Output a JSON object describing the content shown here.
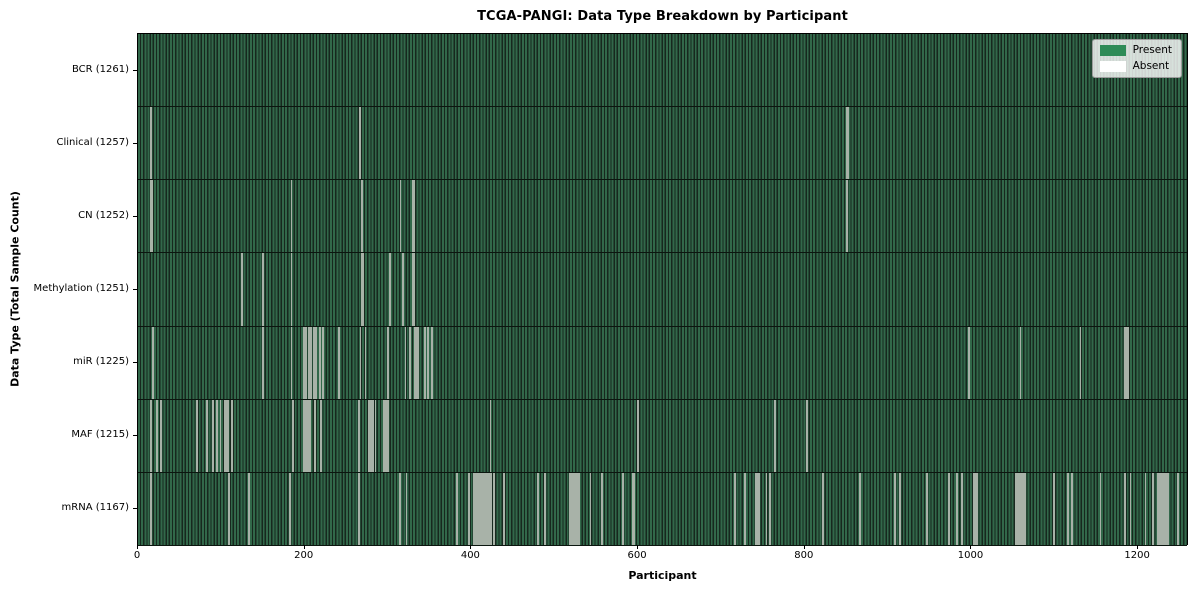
{
  "title": "TCGA-PANGI: Data Type Breakdown by Participant",
  "colors": {
    "present": "#2e8b57",
    "absent": "#ffffff",
    "absent_gap_line": "#a8b2a8",
    "bar_stripe_dark": "#17281e",
    "bar_stripe_green": "#32684a",
    "legend_bg": "#f2f2f2",
    "legend_border": "#9c9c9c"
  },
  "chart_data": {
    "type": "heatmap",
    "title": "TCGA-PANGI: Data Type Breakdown by Participant",
    "x_axis": {
      "label": "Participant",
      "ticks": [
        0,
        200,
        400,
        600,
        800,
        1000,
        1200
      ],
      "range": [
        0,
        1261
      ]
    },
    "y_axis": {
      "label": "Data Type (Total Sample Count)"
    },
    "legend": [
      {
        "label": "Present",
        "color": "#2e8b57"
      },
      {
        "label": "Absent",
        "color": "#ffffff"
      }
    ],
    "legend_position": "upper right",
    "grid": false,
    "total_participants": 1261,
    "rows": [
      {
        "name": "BCR",
        "label": "BCR (1261)",
        "count": 1261,
        "absent": []
      },
      {
        "name": "Clinical",
        "label": "Clinical (1257)",
        "count": 1257,
        "absent": [
          16,
          266,
          851,
          852
        ]
      },
      {
        "name": "CN",
        "label": "CN (1252)",
        "count": 1252,
        "absent": [
          16,
          17,
          184,
          268,
          269,
          315,
          330,
          331,
          851
        ]
      },
      {
        "name": "Methylation",
        "label": "Methylation (1251)",
        "count": 1251,
        "absent": [
          125,
          150,
          184,
          269,
          270,
          302,
          303,
          318,
          330,
          331
        ]
      },
      {
        "name": "miR",
        "label": "miR (1225)",
        "count": 1225,
        "absent": [
          18,
          150,
          184,
          199,
          200,
          202,
          205,
          206,
          208,
          211,
          212,
          214,
          218,
          219,
          222,
          241,
          267,
          273,
          300,
          321,
          326,
          332,
          333,
          334,
          335,
          336,
          344,
          348,
          353,
          997,
          1059,
          1131,
          1184,
          1185,
          1186,
          1188
        ]
      },
      {
        "name": "MAF",
        "label": "MAF (1215)",
        "count": 1215,
        "absent": [
          16,
          23,
          28,
          71,
          83,
          90,
          95,
          99,
          104,
          105,
          106,
          107,
          108,
          113,
          186,
          199,
          200,
          201,
          202,
          203,
          204,
          205,
          206,
          207,
          212,
          213,
          219,
          220,
          265,
          277,
          278,
          279,
          280,
          281,
          282,
          285,
          295,
          296,
          297,
          298,
          299,
          300,
          423,
          600,
          764,
          803
        ]
      },
      {
        "name": "mRNA",
        "label": "mRNA (1167)",
        "count": 1167,
        "absent": [
          16,
          109,
          133,
          182,
          265,
          314,
          322,
          383,
          397,
          403,
          404,
          406,
          407,
          409,
          410,
          412,
          413,
          415,
          416,
          418,
          419,
          421,
          422,
          424,
          427,
          439,
          480,
          488,
          518,
          519,
          520,
          521,
          522,
          523,
          524,
          525,
          526,
          527,
          528,
          529,
          543,
          557,
          582,
          594,
          595,
          716,
          728,
          741,
          742,
          743,
          744,
          745,
          754,
          758,
          822,
          866,
          908,
          914,
          947,
          973,
          983,
          989,
          1003,
          1004,
          1005,
          1006,
          1007,
          1053,
          1054,
          1056,
          1057,
          1059,
          1060,
          1062,
          1063,
          1065,
          1099,
          1116,
          1121,
          1155,
          1184,
          1191,
          1209,
          1218,
          1224,
          1225,
          1227,
          1228,
          1230,
          1231,
          1233,
          1234,
          1236,
          1248
        ]
      }
    ]
  }
}
